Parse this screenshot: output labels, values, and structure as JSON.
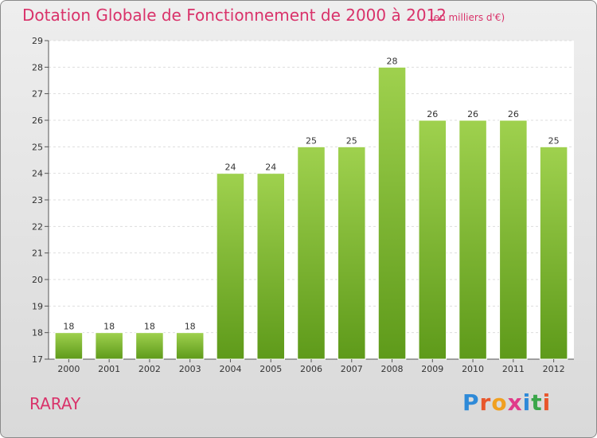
{
  "header": {
    "title": "Dotation Globale de Fonctionnement de 2000 à 2012",
    "subtitle": "(en milliers d'€)"
  },
  "commune": "RARAY",
  "logo": {
    "text": "Proxiti",
    "colors": [
      "#2e8ad8",
      "#e8572c",
      "#f0a020",
      "#e03a8a",
      "#2e8ad8",
      "#3aa64a",
      "#e8572c"
    ]
  },
  "chart_data": {
    "type": "bar",
    "categories": [
      "2000",
      "2001",
      "2002",
      "2003",
      "2004",
      "2005",
      "2006",
      "2007",
      "2008",
      "2009",
      "2010",
      "2011",
      "2012"
    ],
    "values": [
      18,
      18,
      18,
      18,
      24,
      24,
      25,
      25,
      28,
      26,
      26,
      26,
      25
    ],
    "ylim": [
      17,
      29
    ],
    "yticks": [
      17,
      18,
      19,
      20,
      21,
      22,
      23,
      24,
      25,
      26,
      27,
      28,
      29
    ],
    "grid": true,
    "bar_color_top": "#9fd14e",
    "bar_color_bottom": "#5e9a1a",
    "title": "Dotation Globale de Fonctionnement de 2000 à 2012",
    "xlabel": "",
    "ylabel": ""
  }
}
